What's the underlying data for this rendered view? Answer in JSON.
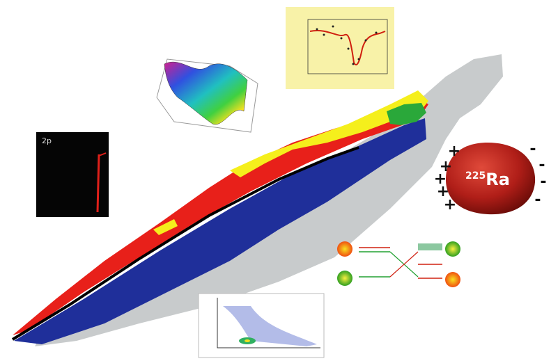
{
  "illustration": {
    "track_inset": {
      "label": "2p"
    },
    "nucleus": {
      "mass_number": "225",
      "symbol": "Ra",
      "plus": "+",
      "minus": "-"
    }
  }
}
